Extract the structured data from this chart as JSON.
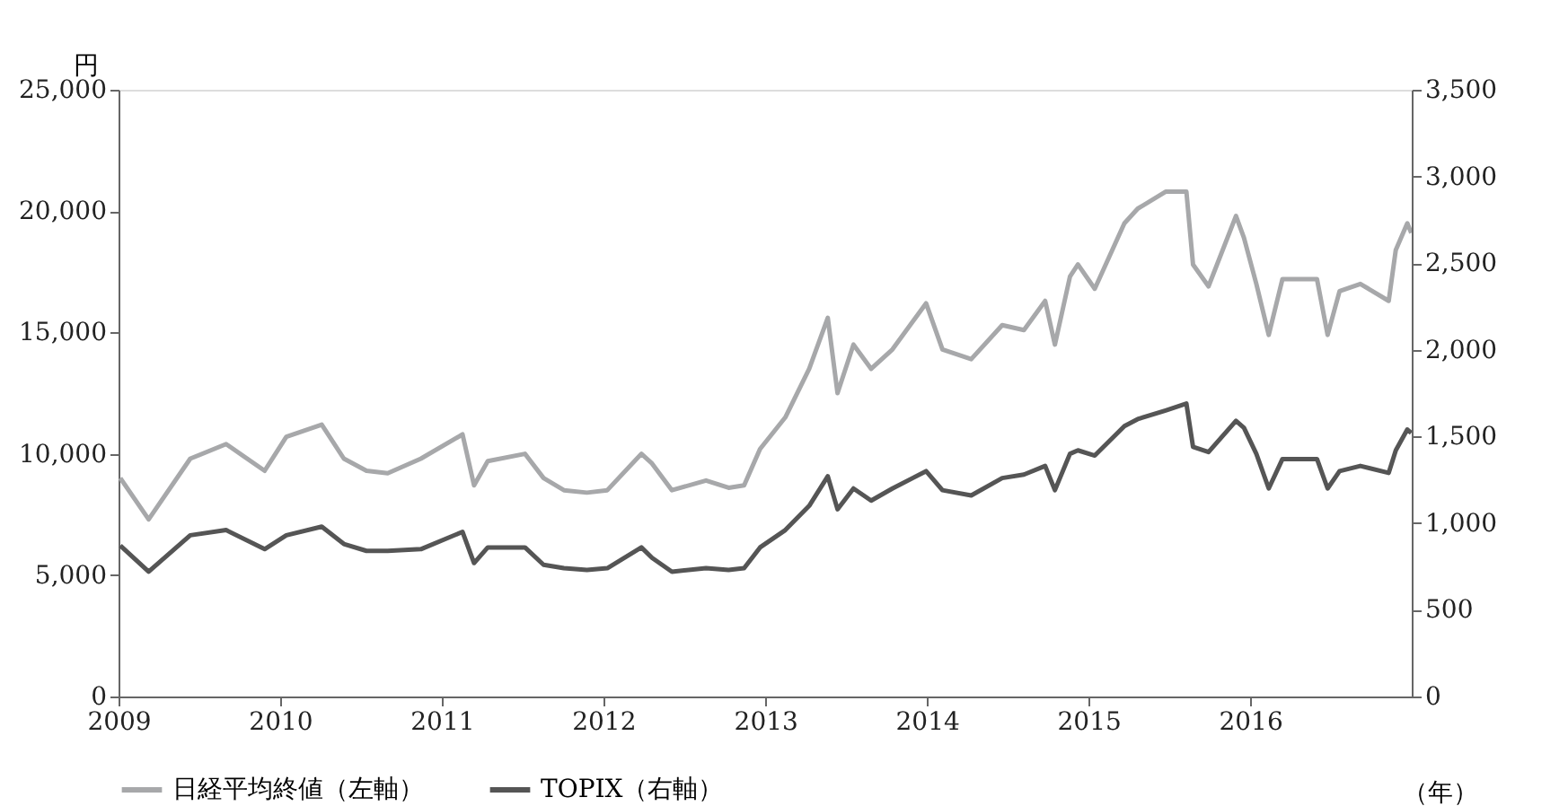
{
  "chart_data": {
    "type": "line",
    "ylabel": "円",
    "xlabel": "（年）",
    "x": [
      "2009-01-05",
      "2009-03-10",
      "2009-06-12",
      "2009-09-01",
      "2009-11-27",
      "2010-01-15",
      "2010-04-05",
      "2010-05-25",
      "2010-07-15",
      "2010-09-01",
      "2010-11-15",
      "2011-02-17",
      "2011-03-15",
      "2011-04-15",
      "2011-07-08",
      "2011-08-19",
      "2011-10-04",
      "2011-11-25",
      "2012-01-10",
      "2012-03-27",
      "2012-04-20",
      "2012-06-04",
      "2012-08-20",
      "2012-10-10",
      "2012-11-14",
      "2012-12-20",
      "2013-02-15",
      "2013-04-10",
      "2013-05-22",
      "2013-06-13",
      "2013-07-19",
      "2013-08-28",
      "2013-10-15",
      "2013-12-30",
      "2014-02-05",
      "2014-04-11",
      "2014-06-20",
      "2014-08-08",
      "2014-09-25",
      "2014-10-17",
      "2014-11-20",
      "2014-12-08",
      "2015-01-15",
      "2015-03-23",
      "2015-04-22",
      "2015-06-24",
      "2015-08-10",
      "2015-08-25",
      "2015-09-29",
      "2015-11-30",
      "2015-12-18",
      "2016-01-15",
      "2016-02-12",
      "2016-03-14",
      "2016-05-31",
      "2016-06-24",
      "2016-07-21",
      "2016-09-06",
      "2016-11-09",
      "2016-11-25",
      "2016-12-21",
      "2016-12-30"
    ],
    "series": [
      {
        "name": "日経平均終値（左軸）",
        "color": "#a7a8aa",
        "values": [
          9000,
          7300,
          9800,
          10400,
          9300,
          10700,
          11200,
          9800,
          9300,
          9200,
          9800,
          10800,
          8700,
          9700,
          10000,
          9000,
          8500,
          8400,
          8500,
          10000,
          9600,
          8500,
          8900,
          8600,
          8700,
          10200,
          11500,
          13500,
          15600,
          12500,
          14500,
          13500,
          14300,
          16200,
          14300,
          13900,
          15300,
          15100,
          16300,
          14500,
          17300,
          17800,
          16800,
          19500,
          20100,
          20800,
          20800,
          17800,
          16900,
          19800,
          18900,
          17000,
          14900,
          17200,
          17200,
          14900,
          16700,
          17000,
          16300,
          18400,
          19500,
          19100
        ]
      },
      {
        "name": "TOPIX（右軸）",
        "color": "#555555",
        "axis": "y2",
        "values": [
          870,
          720,
          930,
          960,
          850,
          930,
          980,
          880,
          840,
          840,
          850,
          950,
          770,
          860,
          860,
          760,
          740,
          730,
          740,
          860,
          800,
          720,
          740,
          730,
          740,
          860,
          960,
          1100,
          1270,
          1080,
          1200,
          1130,
          1200,
          1300,
          1190,
          1160,
          1260,
          1280,
          1330,
          1190,
          1400,
          1420,
          1390,
          1560,
          1600,
          1650,
          1690,
          1440,
          1410,
          1590,
          1550,
          1400,
          1200,
          1370,
          1370,
          1200,
          1300,
          1330,
          1290,
          1420,
          1540,
          1520
        ]
      }
    ],
    "xlim": [
      "2009-01-01",
      "2016-12-31"
    ],
    "xticks": [
      "2009",
      "2010",
      "2011",
      "2012",
      "2013",
      "2014",
      "2015",
      "2016"
    ],
    "ylim": [
      0,
      25000
    ],
    "yticks": [
      0,
      {
        "value": 5000,
        "label": "5,000"
      },
      {
        "value": 10000,
        "label": "10,000"
      },
      {
        "value": 15000,
        "label": "15,000"
      },
      {
        "value": 20000,
        "label": "20,000"
      },
      {
        "value": 25000,
        "label": "25,000"
      }
    ],
    "y2lim": [
      0,
      3500
    ],
    "y2ticks": [
      0,
      500,
      {
        "value": 1000,
        "label": "1,000"
      },
      {
        "value": 1500,
        "label": "1,500"
      },
      {
        "value": 2000,
        "label": "2,000"
      },
      {
        "value": 2500,
        "label": "2,500"
      },
      {
        "value": 3000,
        "label": "3,000"
      },
      {
        "value": 3500,
        "label": "3,500"
      }
    ],
    "grid": false,
    "legend": "bottom"
  }
}
